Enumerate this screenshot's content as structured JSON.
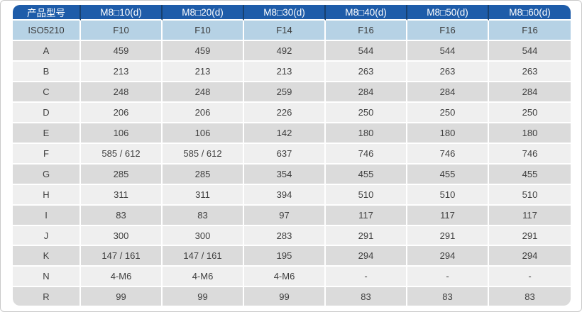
{
  "table": {
    "corner_header": "产品型号",
    "columns": [
      "M8□10(d)",
      "M8□20(d)",
      "M8□30(d)",
      "M8□40(d)",
      "M8□50(d)",
      "M8□60(d)"
    ],
    "rows": [
      {
        "label": "ISO5210",
        "variant": "highlight",
        "values": [
          "F10",
          "F10",
          "F14",
          "F16",
          "F16",
          "F16"
        ]
      },
      {
        "label": "A",
        "variant": "dark",
        "values": [
          "459",
          "459",
          "492",
          "544",
          "544",
          "544"
        ]
      },
      {
        "label": "B",
        "variant": "light",
        "values": [
          "213",
          "213",
          "213",
          "263",
          "263",
          "263"
        ]
      },
      {
        "label": "C",
        "variant": "dark",
        "values": [
          "248",
          "248",
          "259",
          "284",
          "284",
          "284"
        ]
      },
      {
        "label": "D",
        "variant": "light",
        "values": [
          "206",
          "206",
          "226",
          "250",
          "250",
          "250"
        ]
      },
      {
        "label": "E",
        "variant": "dark",
        "values": [
          "106",
          "106",
          "142",
          "180",
          "180",
          "180"
        ]
      },
      {
        "label": "F",
        "variant": "light",
        "values": [
          "585 / 612",
          "585 / 612",
          "637",
          "746",
          "746",
          "746"
        ]
      },
      {
        "label": "G",
        "variant": "dark",
        "values": [
          "285",
          "285",
          "354",
          "455",
          "455",
          "455"
        ]
      },
      {
        "label": "H",
        "variant": "light",
        "values": [
          "311",
          "311",
          "394",
          "510",
          "510",
          "510"
        ]
      },
      {
        "label": "I",
        "variant": "dark",
        "values": [
          "83",
          "83",
          "97",
          "117",
          "117",
          "117"
        ]
      },
      {
        "label": "J",
        "variant": "light",
        "values": [
          "300",
          "300",
          "283",
          "291",
          "291",
          "291"
        ]
      },
      {
        "label": "K",
        "variant": "dark",
        "values": [
          "147 / 161",
          "147 / 161",
          "195",
          "294",
          "294",
          "294"
        ]
      },
      {
        "label": "N",
        "variant": "light",
        "values": [
          "4-M6",
          "4-M6",
          "4-M6",
          "-",
          "-",
          "-"
        ]
      },
      {
        "label": "R",
        "variant": "dark",
        "values": [
          "99",
          "99",
          "99",
          "83",
          "83",
          "83"
        ]
      }
    ]
  },
  "colors": {
    "header_blue": "#1e5ca9",
    "header_divider": "#17406f",
    "row_highlight_blue": "#b6d2e5",
    "row_gray": "#dbdbdb",
    "row_light": "#efefef",
    "cell_gap": "#ffffff",
    "body_text": "#3f3f3f",
    "header_text": "#ffffff",
    "frame_border": "#c9c9c9"
  }
}
